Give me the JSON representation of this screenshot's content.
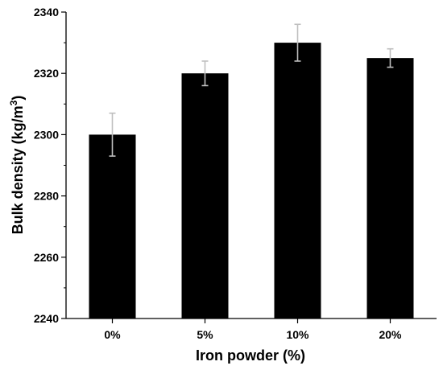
{
  "chart_data": {
    "type": "bar",
    "title": "",
    "xlabel": "Iron powder (%)",
    "ylabel_main": "Bulk density (kg/m",
    "ylabel_sup": "3",
    "ylabel_end": ")",
    "categories": [
      "0%",
      "5%",
      "10%",
      "20%"
    ],
    "values": [
      2300,
      2320,
      2330,
      2325
    ],
    "errors": [
      7,
      4,
      6,
      3
    ],
    "ylim": [
      2240,
      2340
    ],
    "yticks": [
      2240,
      2260,
      2280,
      2300,
      2320,
      2340
    ],
    "ytick_labels": [
      "2240",
      "2260",
      "2280",
      "2300",
      "2320",
      "2340"
    ],
    "grid": false,
    "legend": "none",
    "colors": {
      "bar": "#000000",
      "error_bar": "#bfbfbf",
      "axis": "#000000"
    }
  }
}
